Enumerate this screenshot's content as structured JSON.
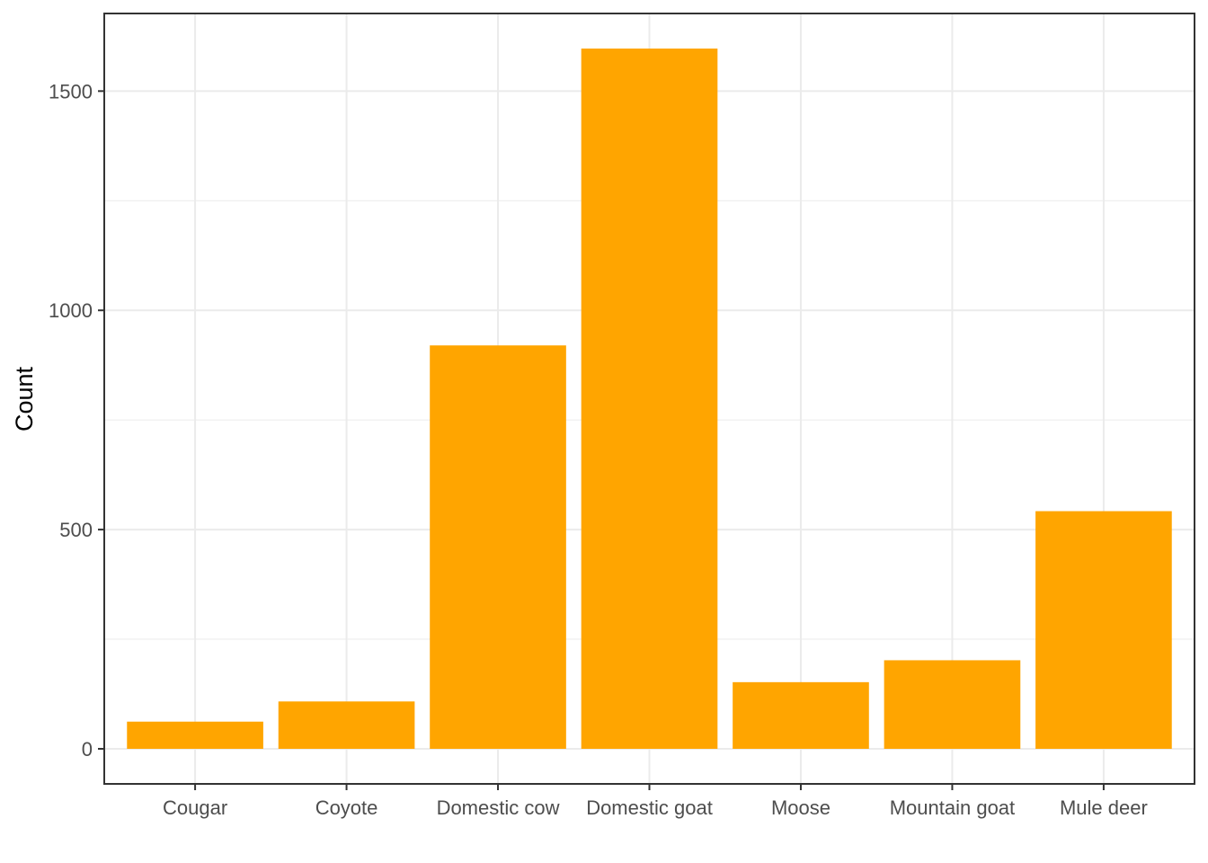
{
  "chart_data": {
    "type": "bar",
    "categories": [
      "Cougar",
      "Coyote",
      "Domestic cow",
      "Domestic goat",
      "Moose",
      "Mountain goat",
      "Mule deer"
    ],
    "values": [
      62,
      108,
      920,
      1597,
      152,
      202,
      542
    ],
    "title": "",
    "xlabel": "",
    "ylabel": "Count",
    "ylim": [
      -80,
      1677
    ],
    "yticks": [
      0,
      500,
      1000,
      1500
    ],
    "ytick_labels": [
      "0",
      "500",
      "1000",
      "1500"
    ],
    "grid": true,
    "legend": "none",
    "bar_color": "#FFA500"
  }
}
